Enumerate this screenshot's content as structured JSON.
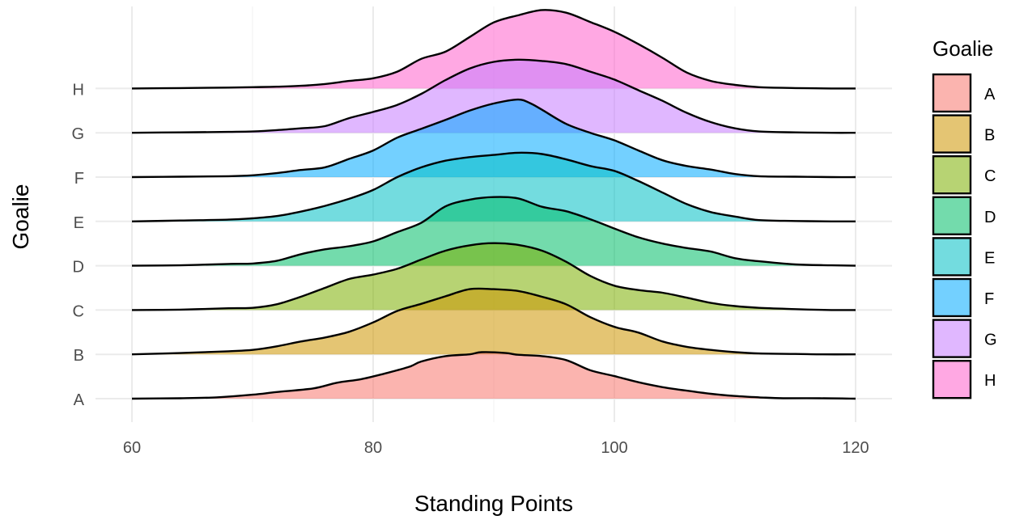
{
  "chart_data": {
    "type": "area",
    "xlabel": "Standing Points",
    "ylabel": "Goalie",
    "xlim": [
      60,
      120
    ],
    "x_ticks": [
      60,
      80,
      100,
      120
    ],
    "categories": [
      "A",
      "B",
      "C",
      "D",
      "E",
      "F",
      "G",
      "H"
    ],
    "grid": true,
    "legend": {
      "title": "Goalie",
      "position": "right",
      "entries": [
        "A",
        "B",
        "C",
        "D",
        "E",
        "F",
        "G",
        "H"
      ]
    },
    "colors": {
      "A": "#F8766D",
      "B": "#CD9600",
      "C": "#7CAE00",
      "D": "#00BE67",
      "E": "#00BFC4",
      "F": "#00A9FF",
      "G": "#C77CFF",
      "H": "#FF61CC"
    },
    "density_scale": "relative height in units of category spacing",
    "series": [
      {
        "name": "A",
        "x": [
          60,
          64,
          67,
          70,
          72,
          75,
          77,
          79,
          81,
          83,
          84,
          86,
          88,
          89,
          91,
          92,
          94,
          96,
          98,
          100,
          102,
          104,
          106,
          108,
          110,
          112,
          114,
          117,
          120
        ],
        "y": [
          0,
          0.01,
          0.03,
          0.09,
          0.15,
          0.23,
          0.36,
          0.44,
          0.57,
          0.72,
          0.84,
          0.96,
          1.0,
          1.05,
          1.03,
          0.99,
          0.96,
          0.87,
          0.64,
          0.51,
          0.37,
          0.26,
          0.18,
          0.11,
          0.06,
          0.03,
          0.01,
          0.01,
          0
        ]
      },
      {
        "name": "B",
        "x": [
          60,
          64,
          68,
          70,
          72,
          74,
          76,
          78,
          80,
          82,
          84,
          86,
          88,
          90,
          92,
          94,
          96,
          98,
          100,
          102,
          104,
          106,
          108,
          110,
          112,
          115,
          117,
          120
        ],
        "y": [
          0,
          0.03,
          0.07,
          0.1,
          0.18,
          0.29,
          0.38,
          0.51,
          0.72,
          0.98,
          1.14,
          1.31,
          1.47,
          1.47,
          1.43,
          1.3,
          1.13,
          0.84,
          0.62,
          0.49,
          0.29,
          0.17,
          0.1,
          0.05,
          0.02,
          0.01,
          0,
          0
        ]
      },
      {
        "name": "C",
        "x": [
          60,
          64,
          68,
          70,
          72,
          74,
          76,
          78,
          80,
          82,
          84,
          86,
          88,
          90,
          92,
          94,
          96,
          98,
          100,
          102,
          104,
          106,
          108,
          110,
          112,
          115,
          118,
          120
        ],
        "y": [
          0,
          0.01,
          0.04,
          0.05,
          0.13,
          0.3,
          0.5,
          0.7,
          0.8,
          0.93,
          1.14,
          1.34,
          1.46,
          1.51,
          1.47,
          1.34,
          1.09,
          0.77,
          0.55,
          0.45,
          0.39,
          0.28,
          0.16,
          0.09,
          0.05,
          0.02,
          0,
          0
        ]
      },
      {
        "name": "D",
        "x": [
          60,
          64,
          68,
          70,
          72,
          74,
          76,
          78,
          80,
          82,
          84,
          86,
          88,
          90,
          92,
          94,
          96,
          98,
          100,
          102,
          104,
          106,
          108,
          110,
          112,
          115,
          118,
          120
        ],
        "y": [
          0,
          0.01,
          0.04,
          0.05,
          0.11,
          0.26,
          0.37,
          0.44,
          0.55,
          0.76,
          0.97,
          1.34,
          1.49,
          1.55,
          1.52,
          1.33,
          1.23,
          1.05,
          0.84,
          0.64,
          0.5,
          0.4,
          0.32,
          0.17,
          0.1,
          0.03,
          0.01,
          0
        ]
      },
      {
        "name": "E",
        "x": [
          60,
          64,
          68,
          70,
          72,
          74,
          76,
          78,
          80,
          82,
          84,
          86,
          88,
          90,
          92,
          94,
          96,
          98,
          100,
          102,
          104,
          106,
          108,
          110,
          112,
          115,
          118,
          120
        ],
        "y": [
          0,
          0.02,
          0.04,
          0.07,
          0.12,
          0.22,
          0.35,
          0.51,
          0.71,
          1.0,
          1.22,
          1.37,
          1.45,
          1.5,
          1.55,
          1.52,
          1.4,
          1.25,
          1.14,
          0.91,
          0.65,
          0.39,
          0.21,
          0.11,
          0.03,
          0.01,
          0,
          0
        ]
      },
      {
        "name": "F",
        "x": [
          60,
          64,
          68,
          70,
          72,
          74,
          76,
          78,
          80,
          82,
          84,
          86,
          88,
          90,
          92,
          93,
          94,
          96,
          98,
          100,
          102,
          104,
          106,
          108,
          110,
          112,
          115,
          118,
          120
        ],
        "y": [
          0,
          0.01,
          0.02,
          0.04,
          0.09,
          0.16,
          0.22,
          0.41,
          0.6,
          0.89,
          1.09,
          1.29,
          1.5,
          1.66,
          1.75,
          1.67,
          1.52,
          1.2,
          1.0,
          0.83,
          0.6,
          0.38,
          0.25,
          0.17,
          0.07,
          0.02,
          0.01,
          0,
          0
        ]
      },
      {
        "name": "G",
        "x": [
          60,
          64,
          68,
          70,
          72,
          74,
          76,
          78,
          80,
          82,
          84,
          86,
          88,
          90,
          92,
          94,
          96,
          98,
          100,
          102,
          104,
          106,
          108,
          110,
          112,
          115,
          118,
          120
        ],
        "y": [
          0,
          0.01,
          0.02,
          0.03,
          0.06,
          0.1,
          0.15,
          0.33,
          0.47,
          0.63,
          0.88,
          1.19,
          1.45,
          1.6,
          1.65,
          1.62,
          1.55,
          1.38,
          1.2,
          0.96,
          0.72,
          0.45,
          0.24,
          0.1,
          0.03,
          0.01,
          0,
          0
        ]
      },
      {
        "name": "H",
        "x": [
          60,
          64,
          68,
          70,
          72,
          74,
          76,
          78,
          80,
          82,
          84,
          86,
          88,
          90,
          92,
          94,
          96,
          98,
          100,
          102,
          104,
          106,
          108,
          110,
          112,
          115,
          118,
          120
        ],
        "y": [
          0,
          0.01,
          0.02,
          0.03,
          0.04,
          0.06,
          0.1,
          0.17,
          0.23,
          0.38,
          0.67,
          0.83,
          1.16,
          1.49,
          1.65,
          1.77,
          1.71,
          1.5,
          1.28,
          1.0,
          0.69,
          0.36,
          0.17,
          0.08,
          0.03,
          0.01,
          0,
          0
        ]
      }
    ]
  }
}
